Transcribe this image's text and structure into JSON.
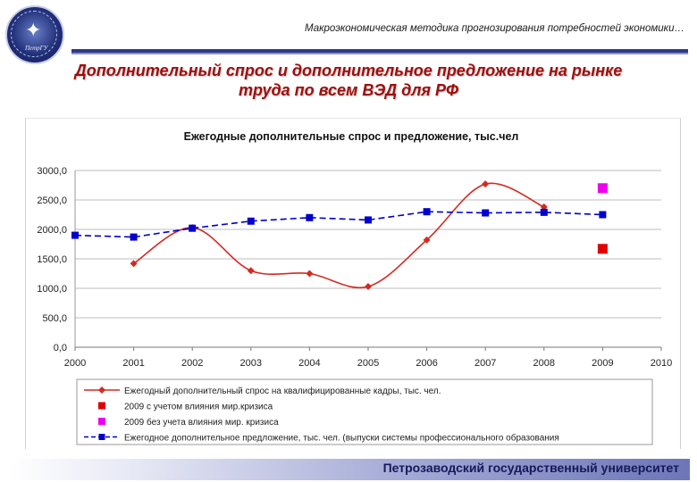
{
  "header": {
    "subtitle": "Макроэкономическая методика прогнозирования потребностей экономики…",
    "title_line1": "Дополнительный спрос и дополнительное предложение на рынке",
    "title_line2": "труда по всем ВЭД для РФ"
  },
  "footer": {
    "university": "Петрозаводский государственный университет"
  },
  "colors": {
    "demand": "#d42a20",
    "supply": "#0000cc",
    "with_crisis": "#e00000",
    "without_crisis": "#ee00ee",
    "title": "#9a1010"
  },
  "chart_data": {
    "type": "line",
    "title": "Ежегодные дополнительные спрос и предложение, тыс.чел",
    "xlabel": "",
    "ylabel": "",
    "x_ticks": [
      "2000",
      "2001",
      "2002",
      "2003",
      "2004",
      "2005",
      "2006",
      "2007",
      "2008",
      "2009",
      "2010"
    ],
    "y_ticks": [
      "0,0",
      "500,0",
      "1000,0",
      "1500,0",
      "2000,0",
      "2500,0",
      "3000,0"
    ],
    "xlim": [
      2000,
      2010
    ],
    "ylim": [
      0,
      3000
    ],
    "grid": "horizontal",
    "legend_position": "bottom",
    "series": [
      {
        "name": "Ежегодный дополнительный спрос на квалифицированные кадры, тыс. чел.",
        "key": "demand",
        "style": "smooth-solid-diamond",
        "x": [
          2001,
          2002,
          2003,
          2004,
          2005,
          2006,
          2007,
          2008
        ],
        "values": [
          1420,
          2030,
          1300,
          1250,
          1030,
          1820,
          2770,
          2380
        ]
      },
      {
        "name": "2009 с учетом влияния мир.кризиса",
        "key": "with_crisis",
        "style": "square",
        "x": [
          2009
        ],
        "values": [
          1670
        ]
      },
      {
        "name": "2009 без учета влияния мир. кризиса",
        "key": "without_crisis",
        "style": "square",
        "x": [
          2009
        ],
        "values": [
          2700
        ]
      },
      {
        "name": "Ежегодное дополнительное предложение, тыс. чел. (выпуски системы профессионального образования",
        "key": "supply",
        "style": "dashed-square",
        "x": [
          2000,
          2001,
          2002,
          2003,
          2004,
          2005,
          2006,
          2007,
          2008,
          2009
        ],
        "values": [
          1900,
          1870,
          2020,
          2140,
          2200,
          2160,
          2300,
          2280,
          2290,
          2250
        ]
      }
    ]
  }
}
